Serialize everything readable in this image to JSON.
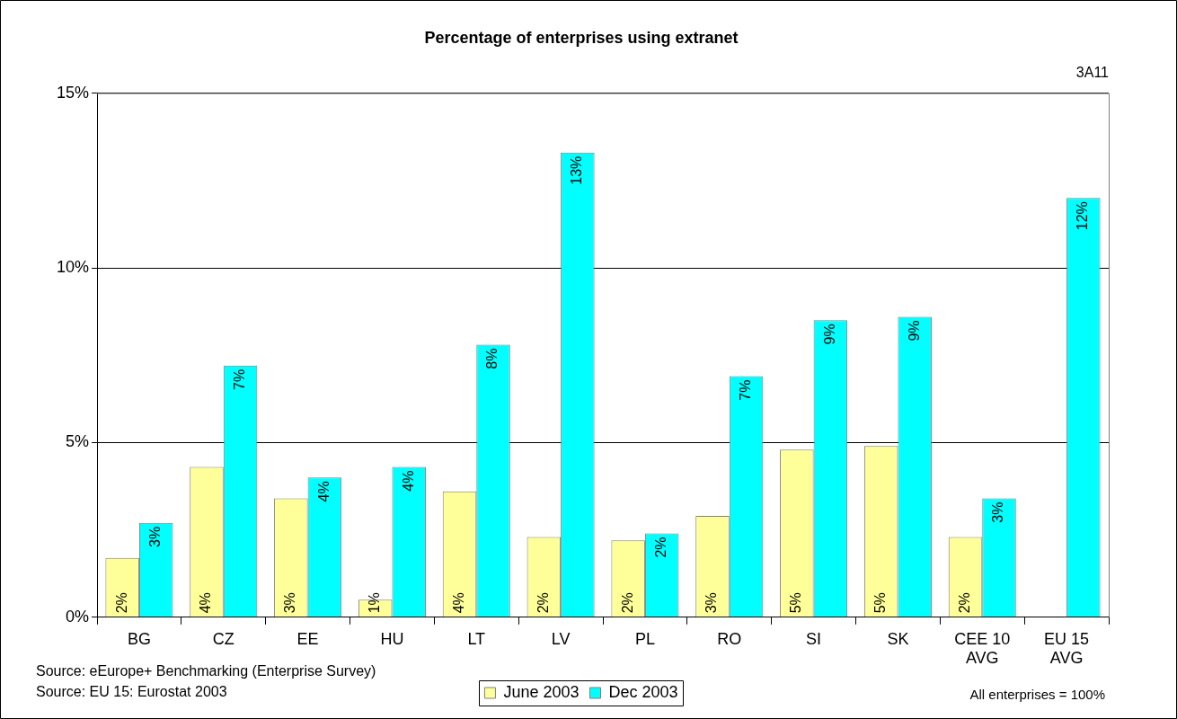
{
  "chart_data": {
    "type": "bar",
    "title": "Percentage of enterprises using extranet",
    "categories": [
      "BG",
      "CZ",
      "EE",
      "HU",
      "LT",
      "LV",
      "PL",
      "RO",
      "SI",
      "SK",
      "CEE 10 AVG",
      "EU 15 AVG"
    ],
    "series": [
      {
        "name": "June 2003",
        "color": "#ffff99",
        "values": [
          1.7,
          4.3,
          3.4,
          0.5,
          3.6,
          2.3,
          2.2,
          2.9,
          4.8,
          4.9,
          2.3,
          null
        ],
        "value_labels": [
          "2%",
          "4%",
          "3%",
          "1%",
          "4%",
          "2%",
          "2%",
          "3%",
          "5%",
          "5%",
          "2%",
          null
        ]
      },
      {
        "name": "Dec 2003",
        "color": "#00ffff",
        "values": [
          2.7,
          7.2,
          4.0,
          4.3,
          7.8,
          13.3,
          2.4,
          6.9,
          8.5,
          8.6,
          3.4,
          12.0
        ],
        "value_labels": [
          "3%",
          "7%",
          "4%",
          "4%",
          "8%",
          "13%",
          "2%",
          "7%",
          "9%",
          "9%",
          "3%",
          "12%"
        ]
      }
    ],
    "ylim": [
      0,
      15
    ],
    "yticks": [
      {
        "value": 0,
        "label": "0%"
      },
      {
        "value": 5,
        "label": "5%"
      },
      {
        "value": 10,
        "label": "10%"
      },
      {
        "value": 15,
        "label": "15%"
      }
    ],
    "grid": "y",
    "legend": "bottom",
    "annotations": [
      "3A11",
      "Source: eEurope+ Benchmarking (Enterprise Survey)",
      "Source: EU 15: Eurostat 2003",
      "All enterprises = 100%"
    ]
  }
}
